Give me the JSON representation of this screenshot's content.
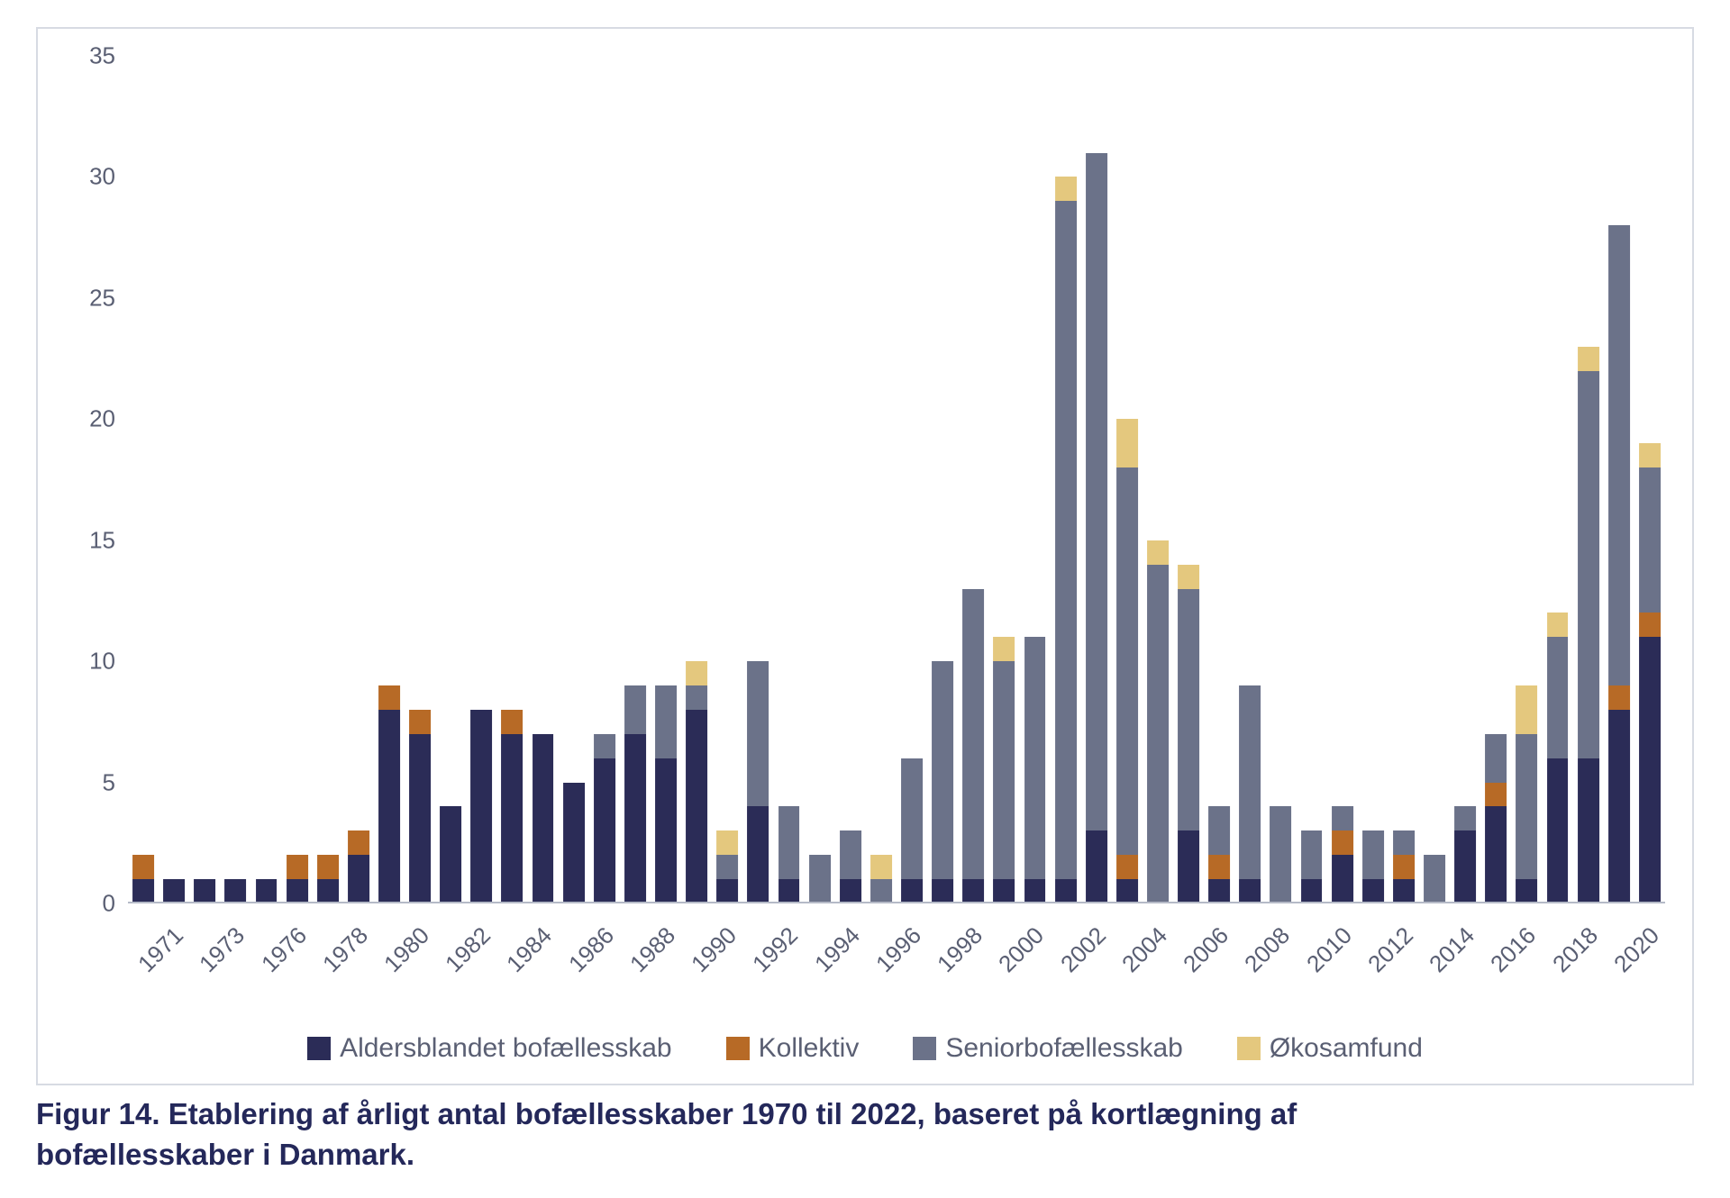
{
  "chart": {
    "type": "stacked-bar",
    "background_color": "#ffffff",
    "border_color": "#d7dbe3",
    "axis_label_color": "#5a5f73",
    "axis_label_fontsize": 26,
    "ylim": [
      0,
      35
    ],
    "ytick_step": 5,
    "bar_width_ratio": 0.7,
    "series": [
      {
        "key": "aldersblandet",
        "label": "Aldersblandet bofællesskab",
        "color": "#2b2c57"
      },
      {
        "key": "kollektiv",
        "label": "Kollektiv",
        "color": "#b76a26"
      },
      {
        "key": "seniorbof",
        "label": "Seniorbofællesskab",
        "color": "#6b7289"
      },
      {
        "key": "okosamfund",
        "label": "Økosamfund",
        "color": "#e4c87e"
      }
    ],
    "x_tick_labels_visible": [
      "1971",
      "1973",
      "1976",
      "1978",
      "1980",
      "1982",
      "1984",
      "1986",
      "1988",
      "1990",
      "1992",
      "1994",
      "1996",
      "1998",
      "2000",
      "2002",
      "2004",
      "2006",
      "2008",
      "2010",
      "2012",
      "2014",
      "2016",
      "2018",
      "2020"
    ],
    "bars": [
      {
        "year": "1971",
        "aldersblandet": 1,
        "kollektiv": 1,
        "seniorbof": 0,
        "okosamfund": 0
      },
      {
        "year": "1972",
        "aldersblandet": 1,
        "kollektiv": 0,
        "seniorbof": 0,
        "okosamfund": 0
      },
      {
        "year": "1973",
        "aldersblandet": 1,
        "kollektiv": 0,
        "seniorbof": 0,
        "okosamfund": 0
      },
      {
        "year": "1975",
        "aldersblandet": 1,
        "kollektiv": 0,
        "seniorbof": 0,
        "okosamfund": 0
      },
      {
        "year": "1976",
        "aldersblandet": 1,
        "kollektiv": 0,
        "seniorbof": 0,
        "okosamfund": 0
      },
      {
        "year": "1977",
        "aldersblandet": 1,
        "kollektiv": 1,
        "seniorbof": 0,
        "okosamfund": 0
      },
      {
        "year": "1978",
        "aldersblandet": 1,
        "kollektiv": 1,
        "seniorbof": 0,
        "okosamfund": 0
      },
      {
        "year": "1979",
        "aldersblandet": 2,
        "kollektiv": 1,
        "seniorbof": 0,
        "okosamfund": 0
      },
      {
        "year": "1980",
        "aldersblandet": 8,
        "kollektiv": 1,
        "seniorbof": 0,
        "okosamfund": 0
      },
      {
        "year": "1981",
        "aldersblandet": 7,
        "kollektiv": 1,
        "seniorbof": 0,
        "okosamfund": 0
      },
      {
        "year": "1982",
        "aldersblandet": 4,
        "kollektiv": 0,
        "seniorbof": 0,
        "okosamfund": 0
      },
      {
        "year": "1983",
        "aldersblandet": 8,
        "kollektiv": 0,
        "seniorbof": 0,
        "okosamfund": 0
      },
      {
        "year": "1984",
        "aldersblandet": 7,
        "kollektiv": 1,
        "seniorbof": 0,
        "okosamfund": 0
      },
      {
        "year": "1985",
        "aldersblandet": 7,
        "kollektiv": 0,
        "seniorbof": 0,
        "okosamfund": 0
      },
      {
        "year": "1986",
        "aldersblandet": 5,
        "kollektiv": 0,
        "seniorbof": 0,
        "okosamfund": 0
      },
      {
        "year": "1987",
        "aldersblandet": 6,
        "kollektiv": 0,
        "seniorbof": 1,
        "okosamfund": 0
      },
      {
        "year": "1988",
        "aldersblandet": 7,
        "kollektiv": 0,
        "seniorbof": 2,
        "okosamfund": 0
      },
      {
        "year": "1989",
        "aldersblandet": 6,
        "kollektiv": 0,
        "seniorbof": 3,
        "okosamfund": 0
      },
      {
        "year": "1990",
        "aldersblandet": 8,
        "kollektiv": 0,
        "seniorbof": 1,
        "okosamfund": 1
      },
      {
        "year": "1991",
        "aldersblandet": 1,
        "kollektiv": 0,
        "seniorbof": 1,
        "okosamfund": 1
      },
      {
        "year": "1992",
        "aldersblandet": 4,
        "kollektiv": 0,
        "seniorbof": 6,
        "okosamfund": 0
      },
      {
        "year": "1993",
        "aldersblandet": 1,
        "kollektiv": 0,
        "seniorbof": 3,
        "okosamfund": 0
      },
      {
        "year": "1994",
        "aldersblandet": 0,
        "kollektiv": 0,
        "seniorbof": 2,
        "okosamfund": 0
      },
      {
        "year": "1995",
        "aldersblandet": 1,
        "kollektiv": 0,
        "seniorbof": 2,
        "okosamfund": 0
      },
      {
        "year": "1996",
        "aldersblandet": 0,
        "kollektiv": 0,
        "seniorbof": 1,
        "okosamfund": 1
      },
      {
        "year": "1997",
        "aldersblandet": 1,
        "kollektiv": 0,
        "seniorbof": 5,
        "okosamfund": 0
      },
      {
        "year": "1998",
        "aldersblandet": 1,
        "kollektiv": 0,
        "seniorbof": 9,
        "okosamfund": 0
      },
      {
        "year": "1999",
        "aldersblandet": 1,
        "kollektiv": 0,
        "seniorbof": 12,
        "okosamfund": 0
      },
      {
        "year": "2000",
        "aldersblandet": 1,
        "kollektiv": 0,
        "seniorbof": 9,
        "okosamfund": 1
      },
      {
        "year": "2001",
        "aldersblandet": 1,
        "kollektiv": 0,
        "seniorbof": 10,
        "okosamfund": 0
      },
      {
        "year": "2002",
        "aldersblandet": 1,
        "kollektiv": 0,
        "seniorbof": 28,
        "okosamfund": 1
      },
      {
        "year": "2003",
        "aldersblandet": 3,
        "kollektiv": 0,
        "seniorbof": 28,
        "okosamfund": 0
      },
      {
        "year": "2004",
        "aldersblandet": 1,
        "kollektiv": 1,
        "seniorbof": 16,
        "okosamfund": 2
      },
      {
        "year": "2005",
        "aldersblandet": 0,
        "kollektiv": 0,
        "seniorbof": 14,
        "okosamfund": 1
      },
      {
        "year": "2006",
        "aldersblandet": 3,
        "kollektiv": 0,
        "seniorbof": 10,
        "okosamfund": 1
      },
      {
        "year": "2007",
        "aldersblandet": 1,
        "kollektiv": 1,
        "seniorbof": 2,
        "okosamfund": 0
      },
      {
        "year": "2008",
        "aldersblandet": 1,
        "kollektiv": 0,
        "seniorbof": 8,
        "okosamfund": 0
      },
      {
        "year": "2009",
        "aldersblandet": 0,
        "kollektiv": 0,
        "seniorbof": 4,
        "okosamfund": 0
      },
      {
        "year": "2010",
        "aldersblandet": 1,
        "kollektiv": 0,
        "seniorbof": 2,
        "okosamfund": 0
      },
      {
        "year": "2011",
        "aldersblandet": 2,
        "kollektiv": 1,
        "seniorbof": 1,
        "okosamfund": 0
      },
      {
        "year": "2012",
        "aldersblandet": 1,
        "kollektiv": 0,
        "seniorbof": 2,
        "okosamfund": 0
      },
      {
        "year": "2013",
        "aldersblandet": 1,
        "kollektiv": 1,
        "seniorbof": 1,
        "okosamfund": 0
      },
      {
        "year": "2014",
        "aldersblandet": 0,
        "kollektiv": 0,
        "seniorbof": 2,
        "okosamfund": 0
      },
      {
        "year": "2015",
        "aldersblandet": 3,
        "kollektiv": 0,
        "seniorbof": 1,
        "okosamfund": 0
      },
      {
        "year": "2016",
        "aldersblandet": 4,
        "kollektiv": 1,
        "seniorbof": 2,
        "okosamfund": 0
      },
      {
        "year": "2017",
        "aldersblandet": 1,
        "kollektiv": 0,
        "seniorbof": 6,
        "okosamfund": 2
      },
      {
        "year": "2018",
        "aldersblandet": 6,
        "kollektiv": 0,
        "seniorbof": 5,
        "okosamfund": 1
      },
      {
        "year": "2019",
        "aldersblandet": 6,
        "kollektiv": 0,
        "seniorbof": 16,
        "okosamfund": 1
      },
      {
        "year": "2020",
        "aldersblandet": 8,
        "kollektiv": 1,
        "seniorbof": 19,
        "okosamfund": 0
      },
      {
        "year": "2021",
        "aldersblandet": 11,
        "kollektiv": 1,
        "seniorbof": 6,
        "okosamfund": 1
      }
    ]
  },
  "caption": "Figur 14. Etablering af årligt antal bofællesskaber 1970 til 2022, baseret på kortlægning af bofællesskaber i Danmark.",
  "caption_color": "#24285a",
  "caption_fontsize": 33
}
